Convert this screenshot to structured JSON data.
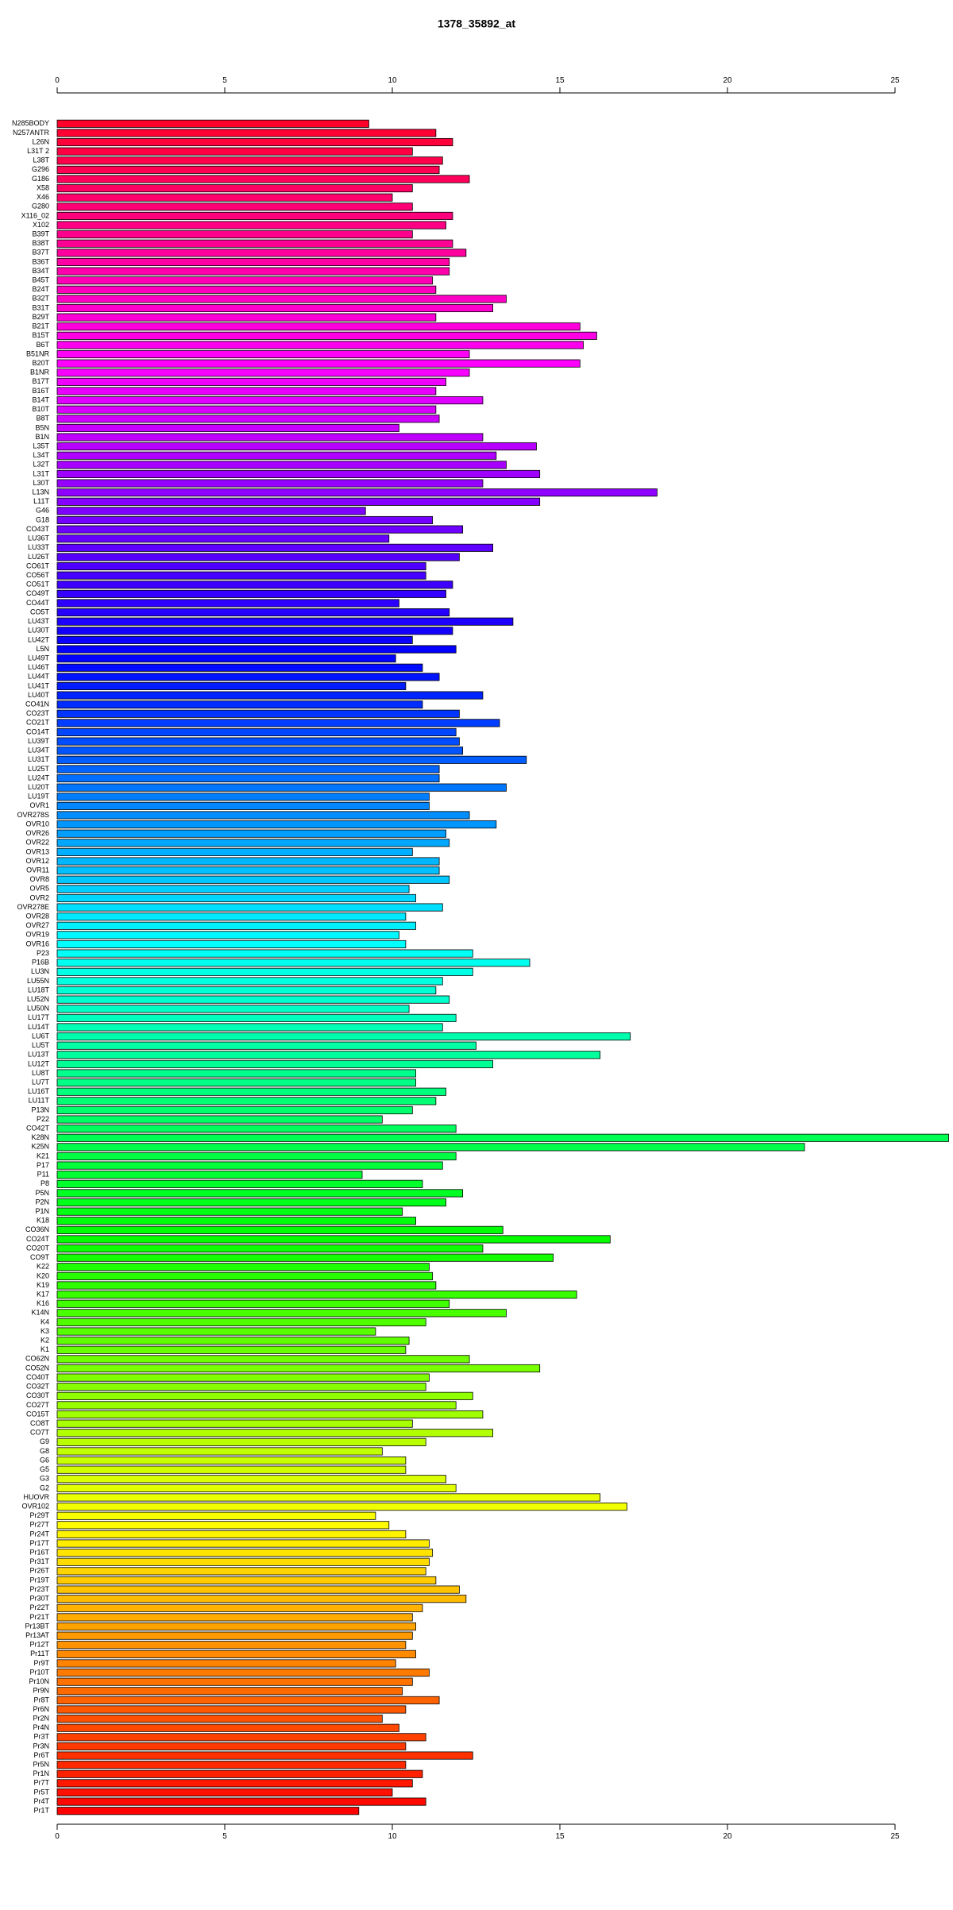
{
  "chart_data": {
    "type": "barh",
    "title": "1378_35892_at",
    "categories": [
      "N285BODY",
      "N257ANTR",
      "L26N",
      "L31T 2",
      "L38T",
      "G296",
      "G186",
      "X58",
      "X46",
      "G280",
      "X116_02",
      "X102",
      "B39T",
      "B38T",
      "B37T",
      "B36T",
      "B34T",
      "B45T",
      "B24T",
      "B32T",
      "B31T",
      "B29T",
      "B21T",
      "B15T",
      "B6T",
      "B51NR",
      "B20T",
      "B1NR",
      "B17T",
      "B16T",
      "B14T",
      "B10T",
      "B8T",
      "B5N",
      "B1N",
      "L35T",
      "L34T",
      "L32T",
      "L31T",
      "L30T",
      "L13N",
      "L11T",
      "G46",
      "G18",
      "CO43T",
      "LU36T",
      "LU33T",
      "LU26T",
      "CO61T",
      "CO56T",
      "CO51T",
      "CO49T",
      "CO44T",
      "CO5T",
      "LU43T",
      "LU30T",
      "LU42T",
      "L5N",
      "LU49T",
      "LU46T",
      "LU44T",
      "LU41T",
      "LU40T",
      "CO41N",
      "CO23T",
      "CO21T",
      "CO14T",
      "LU39T",
      "LU34T",
      "LU31T",
      "LU25T",
      "LU24T",
      "LU20T",
      "LU19T",
      "OVR1",
      "OVR278S",
      "OVR10",
      "OVR26",
      "OVR22",
      "OVR13",
      "OVR12",
      "OVR11",
      "OVR8",
      "OVR5",
      "OVR2",
      "OVR278E",
      "OVR28",
      "OVR27",
      "OVR19",
      "OVR16",
      "P23",
      "P16B",
      "LU3N",
      "LU55N",
      "LU18T",
      "LU52N",
      "LU50N",
      "LU17T",
      "LU14T",
      "LU6T",
      "LU5T",
      "LU13T",
      "LU12T",
      "LU8T",
      "LU7T",
      "LU16T",
      "LU11T",
      "P13N",
      "P22",
      "CO42T",
      "K28N",
      "K25N",
      "K21",
      "P17",
      "P11",
      "P8",
      "P5N",
      "P2N",
      "P1N",
      "K18",
      "CO36N",
      "CO24T",
      "CO20T",
      "CO9T",
      "K22",
      "K20",
      "K19",
      "K17",
      "K16",
      "K14N",
      "K4",
      "K3",
      "K2",
      "K1",
      "CO62N",
      "CO52N",
      "CO40T",
      "CO32T",
      "CO30T",
      "CO27T",
      "CO15T",
      "CO8T",
      "CO7T",
      "G9",
      "G8",
      "G6",
      "G5",
      "G3",
      "G2",
      "HUOVR",
      "OVR102",
      "Pr29T",
      "Pr27T",
      "Pr24T",
      "Pr17T",
      "Pr16T",
      "Pr31T",
      "Pr26T",
      "Pr19T",
      "Pr23T",
      "Pr30T",
      "Pr22T",
      "Pr21T",
      "Pr13BT",
      "Pr13AT",
      "Pr12T",
      "Pr11T",
      "Pr9T",
      "Pr10T",
      "Pr10N",
      "Pr9N",
      "Pr8T",
      "Pr6N",
      "Pr2N",
      "Pr4N",
      "Pr3T",
      "Pr3N",
      "Pr6T",
      "Pr5N",
      "Pr1N",
      "Pr7T",
      "Pr5T",
      "Pr4T",
      "Pr1T"
    ],
    "values": [
      9.3,
      11.3,
      11.8,
      10.6,
      11.5,
      11.4,
      12.3,
      10.6,
      10.0,
      10.6,
      11.8,
      11.6,
      10.6,
      11.8,
      12.2,
      11.7,
      11.7,
      11.2,
      11.3,
      13.4,
      13.0,
      11.3,
      15.6,
      16.1,
      15.7,
      12.3,
      15.6,
      12.3,
      11.6,
      11.3,
      12.7,
      11.3,
      11.4,
      10.2,
      12.7,
      14.3,
      13.1,
      13.4,
      14.4,
      12.7,
      17.9,
      14.4,
      9.2,
      11.2,
      12.1,
      9.9,
      13.0,
      12.0,
      11.0,
      11.0,
      11.8,
      11.6,
      10.2,
      11.7,
      13.6,
      11.8,
      10.6,
      11.9,
      10.1,
      10.9,
      11.4,
      10.4,
      12.7,
      10.9,
      12.0,
      13.2,
      11.9,
      12.0,
      12.1,
      14.0,
      11.4,
      11.4,
      13.4,
      11.1,
      11.1,
      12.3,
      13.1,
      11.6,
      11.7,
      10.6,
      11.4,
      11.4,
      11.7,
      10.5,
      10.7,
      11.5,
      10.4,
      10.7,
      10.2,
      10.4,
      12.4,
      14.1,
      12.4,
      11.5,
      11.3,
      11.7,
      10.5,
      11.9,
      11.5,
      17.1,
      12.5,
      16.2,
      13.0,
      10.7,
      10.7,
      11.6,
      11.3,
      10.6,
      9.7,
      11.9,
      26.6,
      22.3,
      11.9,
      11.5,
      9.1,
      10.9,
      12.1,
      11.6,
      10.3,
      10.7,
      13.3,
      16.5,
      12.7,
      14.8,
      11.1,
      11.2,
      11.3,
      15.5,
      11.7,
      13.4,
      11.0,
      9.5,
      10.5,
      10.4,
      12.3,
      14.4,
      11.1,
      11.0,
      12.4,
      11.9,
      12.7,
      10.6,
      13.0,
      11.0,
      9.7,
      10.4,
      10.4,
      11.6,
      11.9,
      16.2,
      17.0,
      9.5,
      9.9,
      10.4,
      11.1,
      11.2,
      11.1,
      11.0,
      11.3,
      12.0,
      12.2,
      10.9,
      10.6,
      10.7,
      10.6,
      10.4,
      10.7,
      10.1,
      11.1,
      10.6,
      10.3,
      11.4,
      10.4,
      9.7,
      10.2,
      11.0,
      10.4,
      12.4,
      10.4,
      10.9,
      10.6,
      10.0,
      11.0,
      9.0
    ],
    "color_scheme": {
      "name": "rainbow",
      "hue_from": 350,
      "hue_to": 0
    },
    "xlim": [
      0,
      25
    ],
    "xticks": [
      0,
      5,
      10,
      15,
      20,
      25
    ]
  }
}
